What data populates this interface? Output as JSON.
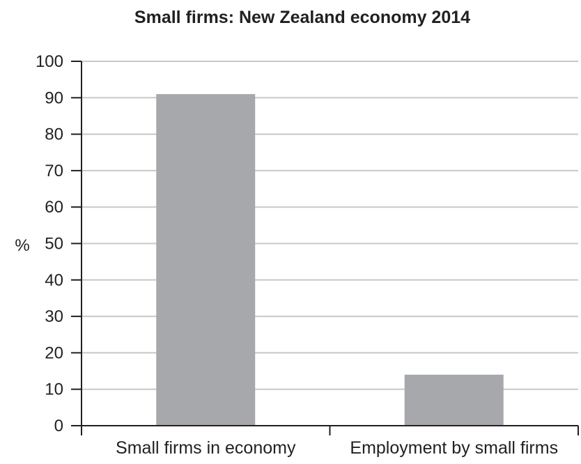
{
  "chart_data": {
    "type": "bar",
    "title": "Small firms: New Zealand economy 2014",
    "ylabel": "%",
    "xlabel": "",
    "categories": [
      "Small firms in economy",
      "Employment by small firms"
    ],
    "values": [
      91,
      14
    ],
    "ylim": [
      0,
      100
    ],
    "yticks": [
      0,
      10,
      20,
      30,
      40,
      50,
      60,
      70,
      80,
      90,
      100
    ],
    "grid": true,
    "colors": {
      "bar": "#a7a8ab",
      "grid": "#c8c8c8",
      "axis": "#231f20",
      "text": "#231f20"
    }
  }
}
